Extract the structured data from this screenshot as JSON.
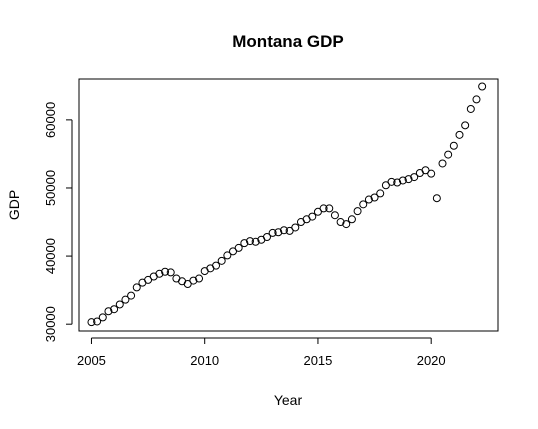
{
  "chart_data": {
    "type": "scatter",
    "title": "Montana GDP",
    "xlabel": "Year",
    "ylabel": "GDP",
    "xlim": [
      2004.45,
      2022.95
    ],
    "ylim": [
      29000,
      66000
    ],
    "x_ticks": [
      2005,
      2010,
      2015,
      2020
    ],
    "y_ticks": [
      30000,
      40000,
      50000,
      60000
    ],
    "grid": false,
    "series": [
      {
        "x": [
          2005,
          2005.25,
          2005.5,
          2005.75,
          2006,
          2006.25,
          2006.5,
          2006.75,
          2007,
          2007.25,
          2007.5,
          2007.75,
          2008,
          2008.25,
          2008.5,
          2008.75,
          2009,
          2009.25,
          2009.5,
          2009.75,
          2010,
          2010.25,
          2010.5,
          2010.75,
          2011,
          2011.25,
          2011.5,
          2011.75,
          2012,
          2012.25,
          2012.5,
          2012.75,
          2013,
          2013.25,
          2013.5,
          2013.75,
          2014,
          2014.25,
          2014.5,
          2014.75,
          2015,
          2015.25,
          2015.5,
          2015.75,
          2016,
          2016.25,
          2016.5,
          2016.75,
          2017,
          2017.25,
          2017.5,
          2017.75,
          2018,
          2018.25,
          2018.5,
          2018.75,
          2019,
          2019.25,
          2019.5,
          2019.75,
          2020,
          2020.25,
          2020.5,
          2020.75,
          2021,
          2021.25,
          2021.5,
          2021.75,
          2022,
          2022.25
        ],
        "y": [
          30300,
          30400,
          31000,
          31900,
          32200,
          32900,
          33600,
          34200,
          35400,
          36100,
          36500,
          37000,
          37400,
          37700,
          37600,
          36700,
          36300,
          35900,
          36400,
          36700,
          37800,
          38200,
          38600,
          39300,
          40100,
          40700,
          41200,
          41900,
          42200,
          42100,
          42400,
          42800,
          43400,
          43500,
          43800,
          43700,
          44200,
          45000,
          45400,
          45800,
          46500,
          47000,
          47000,
          46000,
          45000,
          44700,
          45400,
          46600,
          47600,
          48300,
          48600,
          49200,
          50400,
          50900,
          50800,
          51100,
          51300,
          51600,
          52200,
          52600,
          52100,
          48500,
          53600,
          54900,
          56200,
          57800,
          59200,
          61600,
          63000,
          64900
        ]
      }
    ]
  }
}
